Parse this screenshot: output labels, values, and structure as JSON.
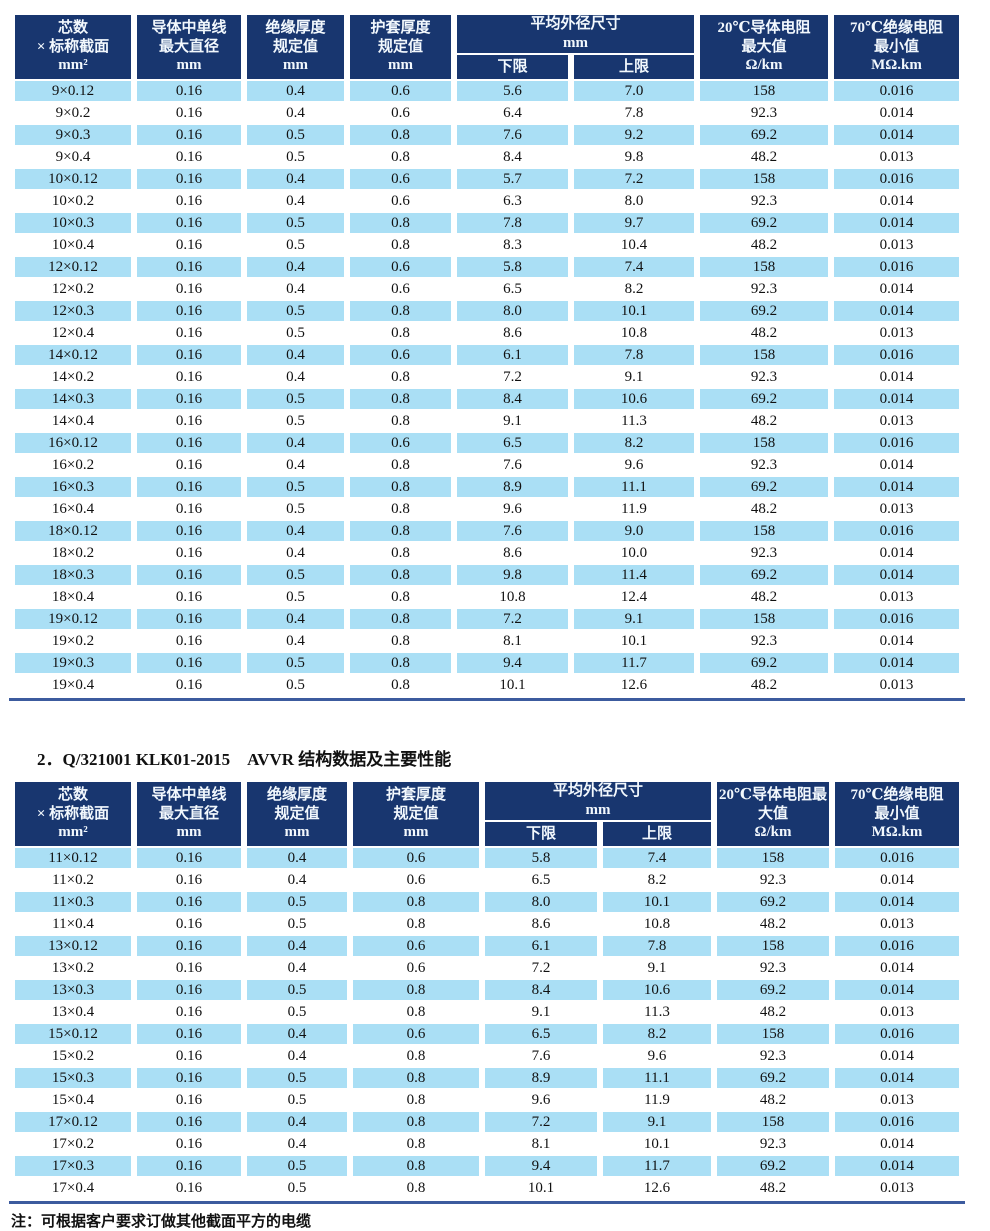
{
  "colors": {
    "header_navy": "#18366f",
    "row_light_blue": "#aadff5",
    "rule_blue": "#3c5b9e"
  },
  "section2_title": "2．Q/321001 KLK01-2015　AVVR 结构数据及主要性能",
  "footnote": "注：可根据客户要求订做其他截面平方的电缆",
  "tables": [
    {
      "headers": {
        "col1": "芯数\n× 标称截面\nmm²",
        "col2": "导体中单线\n最大直径\nmm",
        "col3": "绝缘厚度\n规定值\nmm",
        "col4": "护套厚度\n规定值\nmm",
        "col5": "平均外径尺寸\nmm",
        "col5a": "下限",
        "col5b": "上限",
        "col6": "20℃导体电阻\n最大值\nΩ/km",
        "col7": "70℃绝缘电阻\n最小值\nMΩ.km"
      },
      "rows": [
        [
          "9×0.12",
          "0.16",
          "0.4",
          "0.6",
          "5.6",
          "7.0",
          "158",
          "0.016"
        ],
        [
          "9×0.2",
          "0.16",
          "0.4",
          "0.6",
          "6.4",
          "7.8",
          "92.3",
          "0.014"
        ],
        [
          "9×0.3",
          "0.16",
          "0.5",
          "0.8",
          "7.6",
          "9.2",
          "69.2",
          "0.014"
        ],
        [
          "9×0.4",
          "0.16",
          "0.5",
          "0.8",
          "8.4",
          "9.8",
          "48.2",
          "0.013"
        ],
        [
          "10×0.12",
          "0.16",
          "0.4",
          "0.6",
          "5.7",
          "7.2",
          "158",
          "0.016"
        ],
        [
          "10×0.2",
          "0.16",
          "0.4",
          "0.6",
          "6.3",
          "8.0",
          "92.3",
          "0.014"
        ],
        [
          "10×0.3",
          "0.16",
          "0.5",
          "0.8",
          "7.8",
          "9.7",
          "69.2",
          "0.014"
        ],
        [
          "10×0.4",
          "0.16",
          "0.5",
          "0.8",
          "8.3",
          "10.4",
          "48.2",
          "0.013"
        ],
        [
          "12×0.12",
          "0.16",
          "0.4",
          "0.6",
          "5.8",
          "7.4",
          "158",
          "0.016"
        ],
        [
          "12×0.2",
          "0.16",
          "0.4",
          "0.6",
          "6.5",
          "8.2",
          "92.3",
          "0.014"
        ],
        [
          "12×0.3",
          "0.16",
          "0.5",
          "0.8",
          "8.0",
          "10.1",
          "69.2",
          "0.014"
        ],
        [
          "12×0.4",
          "0.16",
          "0.5",
          "0.8",
          "8.6",
          "10.8",
          "48.2",
          "0.013"
        ],
        [
          "14×0.12",
          "0.16",
          "0.4",
          "0.6",
          "6.1",
          "7.8",
          "158",
          "0.016"
        ],
        [
          "14×0.2",
          "0.16",
          "0.4",
          "0.8",
          "7.2",
          "9.1",
          "92.3",
          "0.014"
        ],
        [
          "14×0.3",
          "0.16",
          "0.5",
          "0.8",
          "8.4",
          "10.6",
          "69.2",
          "0.014"
        ],
        [
          "14×0.4",
          "0.16",
          "0.5",
          "0.8",
          "9.1",
          "11.3",
          "48.2",
          "0.013"
        ],
        [
          "16×0.12",
          "0.16",
          "0.4",
          "0.6",
          "6.5",
          "8.2",
          "158",
          "0.016"
        ],
        [
          "16×0.2",
          "0.16",
          "0.4",
          "0.8",
          "7.6",
          "9.6",
          "92.3",
          "0.014"
        ],
        [
          "16×0.3",
          "0.16",
          "0.5",
          "0.8",
          "8.9",
          "11.1",
          "69.2",
          "0.014"
        ],
        [
          "16×0.4",
          "0.16",
          "0.5",
          "0.8",
          "9.6",
          "11.9",
          "48.2",
          "0.013"
        ],
        [
          "18×0.12",
          "0.16",
          "0.4",
          "0.8",
          "7.6",
          "9.0",
          "158",
          "0.016"
        ],
        [
          "18×0.2",
          "0.16",
          "0.4",
          "0.8",
          "8.6",
          "10.0",
          "92.3",
          "0.014"
        ],
        [
          "18×0.3",
          "0.16",
          "0.5",
          "0.8",
          "9.8",
          "11.4",
          "69.2",
          "0.014"
        ],
        [
          "18×0.4",
          "0.16",
          "0.5",
          "0.8",
          "10.8",
          "12.4",
          "48.2",
          "0.013"
        ],
        [
          "19×0.12",
          "0.16",
          "0.4",
          "0.8",
          "7.2",
          "9.1",
          "158",
          "0.016"
        ],
        [
          "19×0.2",
          "0.16",
          "0.4",
          "0.8",
          "8.1",
          "10.1",
          "92.3",
          "0.014"
        ],
        [
          "19×0.3",
          "0.16",
          "0.5",
          "0.8",
          "9.4",
          "11.7",
          "69.2",
          "0.014"
        ],
        [
          "19×0.4",
          "0.16",
          "0.5",
          "0.8",
          "10.1",
          "12.6",
          "48.2",
          "0.013"
        ]
      ]
    },
    {
      "headers": {
        "col1": "芯数\n× 标称截面\nmm²",
        "col2": "导体中单线\n最大直径\nmm",
        "col3": "绝缘厚度\n规定值\nmm",
        "col4": "护套厚度\n规定值\nmm",
        "col5": "平均外径尺寸\nmm",
        "col5a": "下限",
        "col5b": "上限",
        "col6": "20℃导体电阻最\n大值\nΩ/km",
        "col7": "70℃绝缘电阻\n最小值\nMΩ.km"
      },
      "rows": [
        [
          "11×0.12",
          "0.16",
          "0.4",
          "0.6",
          "5.8",
          "7.4",
          "158",
          "0.016"
        ],
        [
          "11×0.2",
          "0.16",
          "0.4",
          "0.6",
          "6.5",
          "8.2",
          "92.3",
          "0.014"
        ],
        [
          "11×0.3",
          "0.16",
          "0.5",
          "0.8",
          "8.0",
          "10.1",
          "69.2",
          "0.014"
        ],
        [
          "11×0.4",
          "0.16",
          "0.5",
          "0.8",
          "8.6",
          "10.8",
          "48.2",
          "0.013"
        ],
        [
          "13×0.12",
          "0.16",
          "0.4",
          "0.6",
          "6.1",
          "7.8",
          "158",
          "0.016"
        ],
        [
          "13×0.2",
          "0.16",
          "0.4",
          "0.6",
          "7.2",
          "9.1",
          "92.3",
          "0.014"
        ],
        [
          "13×0.3",
          "0.16",
          "0.5",
          "0.8",
          "8.4",
          "10.6",
          "69.2",
          "0.014"
        ],
        [
          "13×0.4",
          "0.16",
          "0.5",
          "0.8",
          "9.1",
          "11.3",
          "48.2",
          "0.013"
        ],
        [
          "15×0.12",
          "0.16",
          "0.4",
          "0.6",
          "6.5",
          "8.2",
          "158",
          "0.016"
        ],
        [
          "15×0.2",
          "0.16",
          "0.4",
          "0.8",
          "7.6",
          "9.6",
          "92.3",
          "0.014"
        ],
        [
          "15×0.3",
          "0.16",
          "0.5",
          "0.8",
          "8.9",
          "11.1",
          "69.2",
          "0.014"
        ],
        [
          "15×0.4",
          "0.16",
          "0.5",
          "0.8",
          "9.6",
          "11.9",
          "48.2",
          "0.013"
        ],
        [
          "17×0.12",
          "0.16",
          "0.4",
          "0.8",
          "7.2",
          "9.1",
          "158",
          "0.016"
        ],
        [
          "17×0.2",
          "0.16",
          "0.4",
          "0.8",
          "8.1",
          "10.1",
          "92.3",
          "0.014"
        ],
        [
          "17×0.3",
          "0.16",
          "0.5",
          "0.8",
          "9.4",
          "11.7",
          "69.2",
          "0.014"
        ],
        [
          "17×0.4",
          "0.16",
          "0.5",
          "0.8",
          "10.1",
          "12.6",
          "48.2",
          "0.013"
        ]
      ]
    }
  ]
}
